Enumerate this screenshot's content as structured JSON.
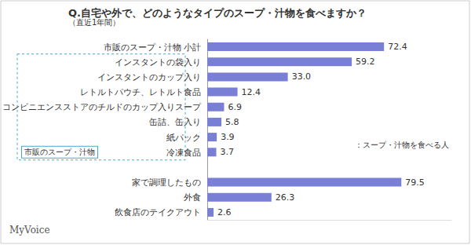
{
  "chart_data": {
    "type": "bar",
    "orientation": "horizontal",
    "title": "Q.自宅や外で、どのようなタイプのスープ・汁物を食べますか？",
    "subtitle": "（直近1年間）",
    "categories": [
      "市販のスープ・汁物 小計",
      "インスタントの袋入り",
      "インスタントのカップ入り",
      "レトルトパウチ、レトルト食品",
      "コンビニエンスストアのチルドのカップ入りスープ",
      "缶詰、缶入り",
      "紙パック",
      "冷凍食品",
      null,
      "家で調理したもの",
      "外食",
      "飲食店のテイクアウト"
    ],
    "values": [
      72.4,
      59.2,
      33.0,
      12.4,
      6.9,
      5.8,
      3.9,
      3.7,
      null,
      79.5,
      26.3,
      2.6
    ],
    "value_labels": [
      "72.4",
      "59.2",
      "33.0",
      "12.4",
      "6.9",
      "5.8",
      "3.9",
      "3.7",
      null,
      "79.5",
      "26.3",
      "2.6"
    ],
    "color": "#7a7fd6",
    "xlim": [
      0,
      100
    ],
    "grid": false,
    "data_labels": true,
    "tick_labels": "y",
    "annotations": [
      "市販のスープ・汁物",
      "：スープ・汁物を食べる人"
    ],
    "source": "MyVoice"
  }
}
